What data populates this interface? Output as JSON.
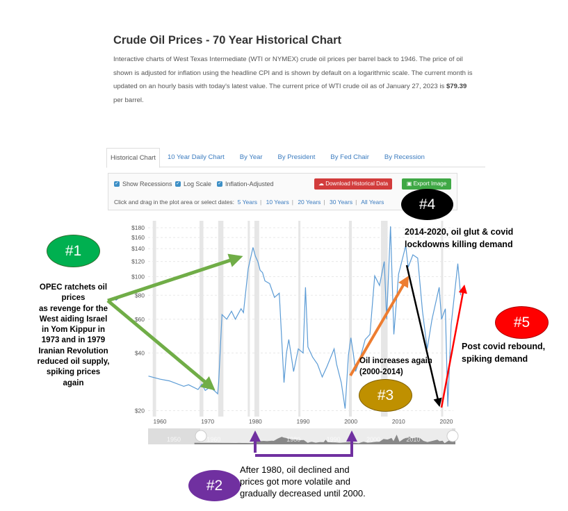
{
  "header": {
    "title": "Crude Oil Prices - 70 Year Historical Chart",
    "description": "Interactive charts of West Texas Intermediate (WTI or NYMEX) crude oil prices per barrel back to 1946. The price of oil shown is adjusted for inflation using the headline CPI and is shown by default on a logarithmic scale. The current month is updated on an hourly basis with today's latest value. The current price of WTI crude oil as of January 27, 2023 is",
    "current_price": "$79.39",
    "price_suffix": " per barrel."
  },
  "tabs": [
    {
      "label": "Historical Chart",
      "active": true
    },
    {
      "label": "10 Year Daily Chart"
    },
    {
      "label": "By Year"
    },
    {
      "label": "By President"
    },
    {
      "label": "By Fed Chair"
    },
    {
      "label": "By Recession"
    }
  ],
  "options": {
    "show_recessions": {
      "label": "Show Recessions",
      "checked": true
    },
    "log_scale": {
      "label": "Log Scale",
      "checked": true
    },
    "inflation_adjusted": {
      "label": "Inflation-Adjusted",
      "checked": true
    },
    "download_label": "Download Historical Data",
    "export_label": "Export Image",
    "dates_prompt": "Click and drag in the plot area or select dates:",
    "date_ranges": [
      "5 Years",
      "10 Years",
      "20 Years",
      "30 Years",
      "All Years"
    ]
  },
  "colors": {
    "line": "#5b9bd5",
    "recession": "#e6e6e6",
    "download": "#d23c3c",
    "export": "#3fa845",
    "link": "#3a7bbf"
  },
  "chart_data": {
    "type": "line",
    "scale": "log",
    "grid": true,
    "ylim": [
      20,
      180
    ],
    "xlim": [
      1957.6,
      2023.2
    ],
    "yticks": [
      20,
      40,
      60,
      80,
      100,
      120,
      140,
      160,
      180
    ],
    "ytick_labels": [
      "$20",
      "$40",
      "$60",
      "$80",
      "$100",
      "$120",
      "$140",
      "$160",
      "$180"
    ],
    "xticks": [
      1960,
      1970,
      1980,
      1990,
      2000,
      2010,
      2020
    ],
    "recessions": [
      [
        1958.5,
        1959.2
      ],
      [
        1968.3,
        1969.1
      ],
      [
        1972.2,
        1973.3
      ],
      [
        1978.4,
        1978.8
      ],
      [
        1979.8,
        1980.8
      ],
      [
        1989.0,
        1989.4
      ],
      [
        1999.6,
        2000.2
      ],
      [
        2006.3,
        2007.7
      ],
      [
        2018.9,
        2019.2
      ]
    ],
    "x": [
      1957.6,
      1960,
      1962,
      1965,
      1966,
      1968,
      1968.8,
      1969.5,
      1970.5,
      1971.5,
      1972.1,
      1972.3,
      1973,
      1974,
      1975,
      1975.8,
      1977,
      1977.5,
      1978.5,
      1979.5,
      1980,
      1980.5,
      1981,
      1981.5,
      1982,
      1983,
      1984,
      1985,
      1986,
      1986.5,
      1987,
      1988,
      1989,
      1990,
      1990.5,
      1991,
      1992,
      1993,
      1994,
      1995,
      1996.5,
      1997,
      1998,
      1998.8,
      1999.5,
      2000,
      2000.5,
      2001,
      2002,
      2003,
      2004,
      2005,
      2006,
      2007,
      2007.5,
      2008.3,
      2009,
      2010,
      2011.5,
      2012,
      2013,
      2014,
      2015,
      2016,
      2017,
      2018.5,
      2019,
      2019.8,
      2020.3,
      2021,
      2022.4,
      2023
    ],
    "values": [
      30.3,
      29.2,
      28.6,
      26.8,
      27.3,
      25.8,
      27.5,
      25.5,
      26.5,
      25.3,
      24.5,
      28,
      63.4,
      60,
      66,
      60,
      68,
      65,
      110,
      142,
      128,
      120,
      108,
      105,
      95,
      92,
      78,
      82,
      28,
      40,
      47,
      32,
      42,
      40,
      88,
      43,
      38,
      35,
      30,
      34,
      42,
      35,
      28,
      20.5,
      39,
      48,
      40,
      32,
      38,
      47,
      50,
      101,
      90,
      120,
      60,
      183,
      50,
      103,
      145,
      112,
      130,
      125,
      66,
      42,
      60,
      88,
      60,
      68,
      21,
      56,
      117,
      80
    ],
    "navigator": {
      "labels": [
        "1950",
        "1960",
        "1980",
        "1990",
        "2000",
        "2010"
      ]
    }
  },
  "annotations": {
    "n1": {
      "badge": "#1",
      "color": "#00b050",
      "text": [
        "OPEC ratchets oil",
        "prices",
        "as revenge for the",
        "West aiding Israel",
        "in Yom Kippur in",
        "1973 and in 1979",
        "Iranian Revolution",
        "reduced oil supply,",
        "spiking prices",
        "again"
      ]
    },
    "n2": {
      "badge": "#2",
      "color": "#7030a0",
      "text": [
        "After 1980, oil declined and",
        "prices got more volatile and",
        "gradually decreased until 2000."
      ]
    },
    "n3": {
      "badge": "#3",
      "color": "#bf9000",
      "text": [
        "Oil increases again",
        "(2000-2014)"
      ]
    },
    "n4": {
      "badge": "#4",
      "color": "#000000",
      "text": [
        "2014-2020, oil glut & covid",
        "lockdowns killing demand"
      ]
    },
    "n5": {
      "badge": "#5",
      "color": "#ff0000",
      "text": [
        "Post covid rebound,",
        "spiking demand"
      ]
    }
  }
}
